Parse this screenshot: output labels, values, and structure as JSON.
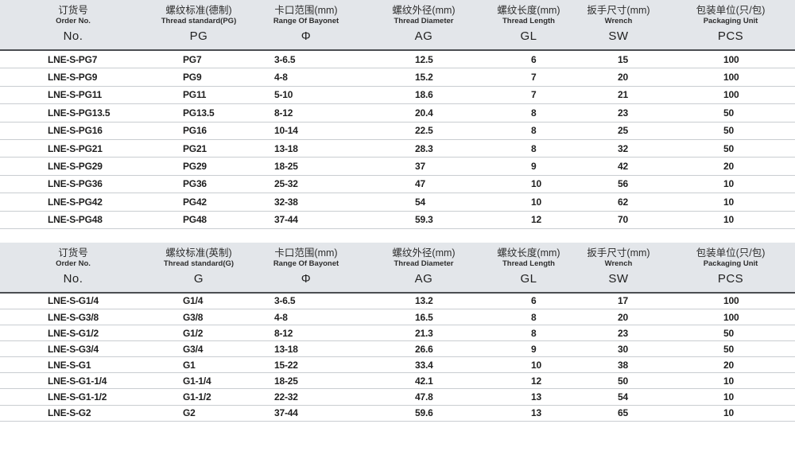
{
  "colors": {
    "header_bg": "#e3e6ea",
    "header_border": "#4b4e52",
    "row_border": "#c9cdd1",
    "text": "#1f1f1f"
  },
  "column_keys": [
    "order-no",
    "thread-standard",
    "bayonet-range",
    "thread-diameter",
    "thread-length",
    "wrench-size",
    "packaging-unit"
  ],
  "tables": [
    {
      "name": "metric-pg-thread-table",
      "columns": [
        {
          "zh": "订货号",
          "en": "Order No.",
          "code": "No."
        },
        {
          "zh": "螺纹标准(德制)",
          "en": "Thread standard(PG)",
          "code": "PG"
        },
        {
          "zh": "卡口范围(mm)",
          "en": "Range Of Bayonet",
          "code": "Φ"
        },
        {
          "zh": "螺纹外径(mm)",
          "en": "Thread Diameter",
          "code": "AG"
        },
        {
          "zh": "螺纹长度(mm)",
          "en": "Thread Length",
          "code": "GL"
        },
        {
          "zh": "扳手尺寸(mm)",
          "en": "Wrench",
          "code": "SW"
        },
        {
          "zh": "包装单位(只/包)",
          "en": "Packaging Unit",
          "code": "PCS"
        }
      ],
      "rows": [
        [
          "LNE-S-PG7",
          "PG7",
          "3-6.5",
          "12.5",
          "6",
          "15",
          "100"
        ],
        [
          "LNE-S-PG9",
          "PG9",
          "4-8",
          "15.2",
          "7",
          "20",
          "100"
        ],
        [
          "LNE-S-PG11",
          "PG11",
          "5-10",
          "18.6",
          "7",
          "21",
          "100"
        ],
        [
          "LNE-S-PG13.5",
          "PG13.5",
          "8-12",
          "20.4",
          "8",
          "23",
          "50"
        ],
        [
          "LNE-S-PG16",
          "PG16",
          "10-14",
          "22.5",
          "8",
          "25",
          "50"
        ],
        [
          "LNE-S-PG21",
          "PG21",
          "13-18",
          "28.3",
          "8",
          "32",
          "50"
        ],
        [
          "LNE-S-PG29",
          "PG29",
          "18-25",
          "37",
          "9",
          "42",
          "20"
        ],
        [
          "LNE-S-PG36",
          "PG36",
          "25-32",
          "47",
          "10",
          "56",
          "10"
        ],
        [
          "LNE-S-PG42",
          "PG42",
          "32-38",
          "54",
          "10",
          "62",
          "10"
        ],
        [
          "LNE-S-PG48",
          "PG48",
          "37-44",
          "59.3",
          "12",
          "70",
          "10"
        ]
      ]
    },
    {
      "name": "imperial-g-thread-table",
      "columns": [
        {
          "zh": "订货号",
          "en": "Order No.",
          "code": "No."
        },
        {
          "zh": "螺纹标准(英制)",
          "en": "Thread standard(G)",
          "code": "G"
        },
        {
          "zh": "卡口范围(mm)",
          "en": "Range Of Bayonet",
          "code": "Φ"
        },
        {
          "zh": "螺纹外径(mm)",
          "en": "Thread Diameter",
          "code": "AG"
        },
        {
          "zh": "螺纹长度(mm)",
          "en": "Thread Length",
          "code": "GL"
        },
        {
          "zh": "扳手尺寸(mm)",
          "en": "Wrench",
          "code": "SW"
        },
        {
          "zh": "包装单位(只/包)",
          "en": "Packaging Unit",
          "code": "PCS"
        }
      ],
      "rows": [
        [
          "LNE-S-G1/4",
          "G1/4",
          "3-6.5",
          "13.2",
          "6",
          "17",
          "100"
        ],
        [
          "LNE-S-G3/8",
          "G3/8",
          "4-8",
          "16.5",
          "8",
          "20",
          "100"
        ],
        [
          "LNE-S-G1/2",
          "G1/2",
          "8-12",
          "21.3",
          "8",
          "23",
          "50"
        ],
        [
          "LNE-S-G3/4",
          "G3/4",
          "13-18",
          "26.6",
          "9",
          "30",
          "50"
        ],
        [
          "LNE-S-G1",
          "G1",
          "15-22",
          "33.4",
          "10",
          "38",
          "20"
        ],
        [
          "LNE-S-G1-1/4",
          "G1-1/4",
          "18-25",
          "42.1",
          "12",
          "50",
          "10"
        ],
        [
          "LNE-S-G1-1/2",
          "G1-1/2",
          "22-32",
          "47.8",
          "13",
          "54",
          "10"
        ],
        [
          "LNE-S-G2",
          "G2",
          "37-44",
          "59.6",
          "13",
          "65",
          "10"
        ]
      ]
    }
  ]
}
